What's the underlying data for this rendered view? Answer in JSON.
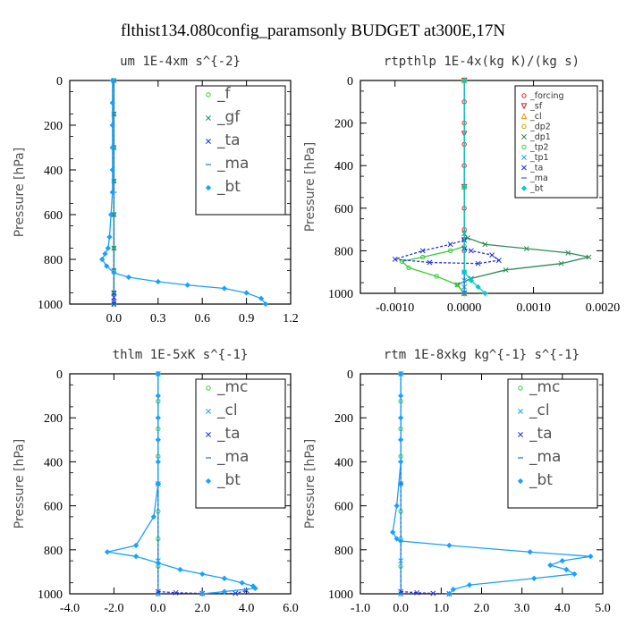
{
  "title": "flthist134.080config_paramsonly  BUDGET at300E,17N",
  "chart_data": [
    {
      "type": "line",
      "title": "um   1E-4xm s^{-2}",
      "ylabel": "Pressure [hPa]",
      "xlim": [
        -0.3,
        1.2
      ],
      "ylim": [
        1000,
        0
      ],
      "xticks": [
        "0.0",
        "0.3",
        "0.6",
        "0.9",
        "1.2"
      ],
      "xtick_values": [
        0,
        0.3,
        0.6,
        0.9,
        1.2
      ],
      "yticks": [
        "0",
        "200",
        "400",
        "600",
        "800",
        "1000"
      ],
      "ytick_values": [
        0,
        200,
        400,
        600,
        800,
        1000
      ],
      "legend": {
        "placement": "top-right",
        "size": "big"
      },
      "series": [
        {
          "name": "_f",
          "color": "#33cc33",
          "marker": "circle",
          "x": [
            0,
            0,
            0,
            0,
            0,
            0,
            0,
            0,
            0
          ],
          "y": [
            0,
            150,
            300,
            450,
            600,
            750,
            850,
            950,
            1000
          ]
        },
        {
          "name": "_gf",
          "color": "#1f8a70",
          "marker": "cross",
          "x": [
            0,
            0,
            0,
            0,
            0,
            0,
            0,
            0,
            0
          ],
          "y": [
            0,
            150,
            300,
            450,
            600,
            750,
            850,
            950,
            1000
          ]
        },
        {
          "name": "_ta",
          "color": "#2233dd",
          "marker": "cross",
          "x": [
            0,
            0,
            0,
            0
          ],
          "y": [
            950,
            970,
            990,
            1000
          ]
        },
        {
          "name": "_ma",
          "color": "#2a6fdb",
          "marker": "dash",
          "x": [
            0,
            0,
            0
          ],
          "y": [
            0,
            500,
            1000
          ]
        },
        {
          "name": "_bt",
          "color": "#1aa0ff",
          "marker": "diamond",
          "x": [
            -0.01,
            -0.01,
            -0.01,
            -0.01,
            -0.01,
            -0.01,
            -0.02,
            -0.03,
            -0.04,
            -0.06,
            -0.08,
            -0.05,
            0.0,
            0.1,
            0.3,
            0.5,
            0.75,
            0.9,
            1.0,
            1.03
          ],
          "y": [
            0,
            100,
            200,
            300,
            400,
            500,
            600,
            700,
            750,
            775,
            800,
            830,
            860,
            880,
            900,
            915,
            930,
            950,
            975,
            1000
          ]
        }
      ]
    },
    {
      "type": "line",
      "title": "rtpthlp   1E-4x(kg K)/(kg s)",
      "ylabel": "Pressure [hPa]",
      "xlim": [
        -0.0015,
        0.002
      ],
      "ylim": [
        1000,
        0
      ],
      "xticks": [
        "-0.0010",
        "0.0000",
        "0.0010",
        "0.0020"
      ],
      "xtick_values": [
        -0.001,
        0,
        0.001,
        0.002
      ],
      "yticks": [
        "0",
        "200",
        "400",
        "600",
        "800",
        "1000"
      ],
      "ytick_values": [
        0,
        200,
        400,
        600,
        800,
        1000
      ],
      "legend": {
        "placement": "top-right",
        "size": "small"
      },
      "series": [
        {
          "name": "_forcing",
          "color": "#dd2222",
          "marker": "circle",
          "x": [
            0,
            0,
            0,
            0,
            0,
            0,
            0,
            0,
            0,
            0,
            0
          ],
          "y": [
            0,
            100,
            200,
            300,
            400,
            500,
            600,
            700,
            800,
            900,
            1000
          ]
        },
        {
          "name": "_sf",
          "color": "#cc2222",
          "marker": "triangle-down",
          "x": [
            0,
            0,
            0,
            0,
            0
          ],
          "y": [
            0,
            250,
            500,
            750,
            1000
          ]
        },
        {
          "name": "_cl",
          "color": "#e69a00",
          "marker": "triangle",
          "x": [
            0,
            0,
            0
          ],
          "y": [
            0,
            500,
            1000
          ]
        },
        {
          "name": "_dp2",
          "color": "#d4a000",
          "marker": "circle",
          "x": [
            0,
            0,
            0
          ],
          "y": [
            0,
            500,
            1000
          ]
        },
        {
          "name": "_dp1",
          "color": "#2e8b57",
          "marker": "cross",
          "x": [
            0,
            5e-05,
            0.0003,
            0.0009,
            0.0015,
            0.0018,
            0.0014,
            0.0006,
            0.0001,
            -0.0001,
            0.0
          ],
          "y": [
            720,
            740,
            770,
            790,
            810,
            830,
            860,
            890,
            930,
            960,
            1000
          ]
        },
        {
          "name": "_tp2",
          "color": "#33cc33",
          "marker": "circle",
          "x": [
            0,
            -0.0002,
            -0.0006,
            -0.0009,
            -0.0008,
            -0.0004,
            -0.0001,
            0.0
          ],
          "y": [
            780,
            800,
            830,
            850,
            880,
            920,
            960,
            1000
          ]
        },
        {
          "name": "_tp1",
          "color": "#1aa0ff",
          "marker": "cross",
          "x": [
            0,
            0,
            0,
            0
          ],
          "y": [
            900,
            940,
            970,
            1000
          ]
        },
        {
          "name": "_ta",
          "color": "#2233dd",
          "marker": "cross",
          "x": [
            0,
            -0.0002,
            -0.0006,
            -0.001,
            -0.0005,
            0.0002,
            0.0005,
            0.0004,
            0.0001,
            0.0
          ],
          "y": [
            750,
            770,
            800,
            840,
            855,
            860,
            845,
            820,
            800,
            790
          ]
        },
        {
          "name": "_ma",
          "color": "#2a6fdb",
          "marker": "dash",
          "x": [
            0,
            0,
            0
          ],
          "y": [
            0,
            500,
            1000
          ]
        },
        {
          "name": "_bt",
          "color": "#00cccc",
          "marker": "diamond",
          "x": [
            0,
            0,
            0,
            0.0001,
            0.0002,
            0.0003
          ],
          "y": [
            0,
            500,
            900,
            940,
            970,
            1000
          ]
        }
      ]
    },
    {
      "type": "line",
      "title": "thlm   1E-5xK s^{-1}",
      "ylabel": "Pressure [hPa]",
      "xlim": [
        -4,
        6
      ],
      "ylim": [
        1000,
        0
      ],
      "xticks": [
        "-4.0",
        "-2.0",
        "0.0",
        "2.0",
        "4.0",
        "6.0"
      ],
      "xtick_values": [
        -4,
        -2,
        0,
        2,
        4,
        6
      ],
      "yticks": [
        "0",
        "200",
        "400",
        "600",
        "800",
        "1000"
      ],
      "ytick_values": [
        0,
        200,
        400,
        600,
        800,
        1000
      ],
      "legend": {
        "placement": "top-right",
        "size": "big"
      },
      "series": [
        {
          "name": "_mc",
          "color": "#33cc33",
          "marker": "circle",
          "x": [
            0,
            0,
            0,
            0,
            0,
            0,
            0,
            0,
            0
          ],
          "y": [
            0,
            125,
            250,
            375,
            500,
            625,
            750,
            875,
            1000
          ]
        },
        {
          "name": "_cl",
          "color": "#1aa0ff",
          "marker": "cross",
          "x": [
            0,
            0,
            0,
            0
          ],
          "y": [
            0,
            500,
            850,
            1000
          ]
        },
        {
          "name": "_ta",
          "color": "#2233dd",
          "marker": "cross",
          "x": [
            0,
            0.8,
            2.0,
            3.5,
            4.0
          ],
          "y": [
            990,
            995,
            998,
            998,
            985
          ]
        },
        {
          "name": "_ma",
          "color": "#2a6fdb",
          "marker": "dash",
          "x": [
            0,
            0,
            0
          ],
          "y": [
            0,
            500,
            1000
          ]
        },
        {
          "name": "_bt",
          "color": "#1aa0ff",
          "marker": "diamond",
          "x": [
            0,
            0,
            0,
            0,
            0,
            0,
            -0.2,
            -1.0,
            -2.3,
            -1.0,
            0.0,
            1.0,
            2.0,
            3.0,
            3.8,
            4.3,
            4.4,
            3.0,
            2.0
          ],
          "y": [
            0,
            100,
            200,
            300,
            400,
            500,
            650,
            780,
            810,
            830,
            860,
            890,
            910,
            930,
            950,
            965,
            975,
            990,
            1000
          ]
        }
      ]
    },
    {
      "type": "line",
      "title": "rtm   1E-8xkg kg^{-1} s^{-1}",
      "ylabel": "Pressure [hPa]",
      "xlim": [
        -1,
        5
      ],
      "ylim": [
        1000,
        0
      ],
      "xticks": [
        "-1.0",
        "0.0",
        "1.0",
        "2.0",
        "3.0",
        "4.0",
        "5.0"
      ],
      "xtick_values": [
        -1,
        0,
        1,
        2,
        3,
        4,
        5
      ],
      "yticks": [
        "0",
        "200",
        "400",
        "600",
        "800",
        "1000"
      ],
      "ytick_values": [
        0,
        200,
        400,
        600,
        800,
        1000
      ],
      "legend": {
        "placement": "top-right",
        "size": "big"
      },
      "series": [
        {
          "name": "_mc",
          "color": "#33cc33",
          "marker": "circle",
          "x": [
            0,
            0,
            0,
            0,
            0,
            0,
            0,
            0,
            0
          ],
          "y": [
            0,
            125,
            250,
            375,
            500,
            625,
            750,
            875,
            1000
          ]
        },
        {
          "name": "_cl",
          "color": "#1aa0ff",
          "marker": "cross",
          "x": [
            0,
            0,
            0,
            0
          ],
          "y": [
            0,
            500,
            850,
            1000
          ]
        },
        {
          "name": "_ta",
          "color": "#2233dd",
          "marker": "cross",
          "x": [
            0,
            0.4,
            0.8,
            1.2
          ],
          "y": [
            990,
            995,
            998,
            1000
          ]
        },
        {
          "name": "_ma",
          "color": "#2a6fdb",
          "marker": "dash",
          "x": [
            0,
            0,
            0
          ],
          "y": [
            0,
            500,
            1000
          ]
        },
        {
          "name": "_bt",
          "color": "#1aa0ff",
          "marker": "diamond",
          "x": [
            0,
            0,
            0,
            0,
            0,
            -0.1,
            -0.2,
            -0.1,
            0.0,
            1.2,
            3.2,
            4.7,
            4.0,
            3.7,
            4.1,
            4.3,
            3.3,
            1.7,
            1.3,
            1.2
          ],
          "y": [
            0,
            100,
            200,
            300,
            400,
            600,
            720,
            750,
            760,
            780,
            810,
            830,
            850,
            870,
            890,
            910,
            930,
            960,
            980,
            1000
          ]
        }
      ]
    }
  ]
}
